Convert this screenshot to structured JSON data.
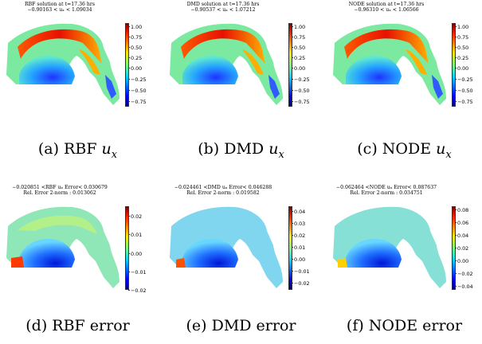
{
  "top_row": [
    {
      "title1": "RBF solution at t=17.36 hrs",
      "title2": "−0.90163 < uₓ < 1.09034",
      "ticks": [
        "1.00",
        "0.75",
        "0.50",
        "0.25",
        "0.00",
        "−0.25",
        "−0.50",
        "−0.75"
      ],
      "caption_prefix": "(a) RBF ",
      "caption_var": "u",
      "caption_sub": "x"
    },
    {
      "title1": "DMD solution at t=17.36 hrs",
      "title2": "−0.90537 < uₓ < 1.07212",
      "ticks": [
        "1.00",
        "0.75",
        "0.50",
        "0.25",
        "0.00",
        "−0.25",
        "−0.50",
        "−0.75"
      ],
      "caption_prefix": "(b) DMD ",
      "caption_var": "u",
      "caption_sub": "x"
    },
    {
      "title1": "NODE solution at t=17.36 hrs",
      "title2": "−0.96310 < uₓ < 1.06566",
      "ticks": [
        "1.00",
        "0.75",
        "0.50",
        "0.25",
        "0.00",
        "−0.25",
        "−0.50",
        "−0.75"
      ],
      "caption_prefix": "(c) NODE ",
      "caption_var": "u",
      "caption_sub": "x"
    }
  ],
  "bottom_row": [
    {
      "title1": "−0.020851 <RBF uₓ Error< 0.030679",
      "title2": "Rel. Error 2-norm : 0.013062",
      "ticks": [
        "0.02",
        "0.01",
        "0.00",
        "−0.01",
        "−0.02"
      ],
      "caption": "(d) RBF error"
    },
    {
      "title1": "−0.024461 <DMD uₓ Error< 0.046288",
      "title2": "Rel. Error 2-norm : 0.019582",
      "ticks": [
        "0.04",
        "0.03",
        "0.02",
        "0.01",
        "0.00",
        "−0.01",
        "−0.02"
      ],
      "caption": "(e) DMD error"
    },
    {
      "title1": "−0.062464 <NODE uₓ Error< 0.087637",
      "title2": "Rel. Error 2-norm : 0.034751",
      "ticks": [
        "0.08",
        "0.06",
        "0.04",
        "0.02",
        "0.00",
        "−0.02",
        "−0.04"
      ],
      "caption": "(f) NODE error"
    }
  ],
  "colormap": "jet"
}
